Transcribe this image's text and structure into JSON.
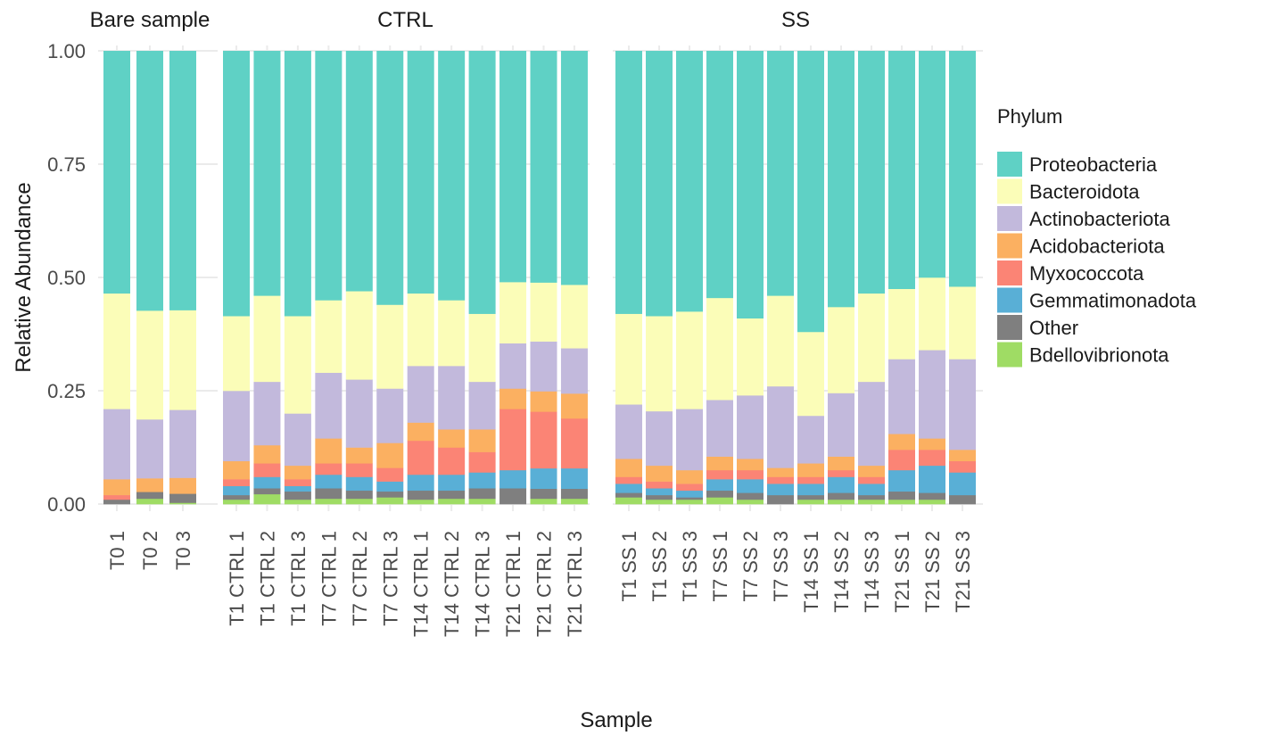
{
  "chart_data": {
    "type": "bar",
    "stacked": true,
    "xlabel": "Sample",
    "ylabel": "Relative Abundance",
    "ylim": [
      0,
      1
    ],
    "y_ticks": [
      "0.00",
      "0.25",
      "0.50",
      "0.75",
      "1.00"
    ],
    "grid": true,
    "legend": {
      "title": "Phylum",
      "position": "right",
      "entries": [
        "Proteobacteria",
        "Bacteroidota",
        "Actinobacteriota",
        "Acidobacteriota",
        "Myxococcota",
        "Gemmatimonadota",
        "Other",
        "Bdellovibrionota"
      ]
    },
    "colors": {
      "Proteobacteria": "#5fd1c5",
      "Bacteroidota": "#fbfdb8",
      "Actinobacteriota": "#c2b9dc",
      "Acidobacteriota": "#fbb061",
      "Myxococcota": "#fb8475",
      "Gemmatimonadota": "#59afd6",
      "Other": "#7f7f7f",
      "Bdellovibrionota": "#9fdc64"
    },
    "stack_order_bottom_to_top": [
      "Bdellovibrionota",
      "Other",
      "Gemmatimonadota",
      "Myxococcota",
      "Acidobacteriota",
      "Actinobacteriota",
      "Bacteroidota",
      "Proteobacteria"
    ],
    "facets": [
      {
        "title": "Bare sample",
        "samples": [
          {
            "label": "T0_1",
            "Bdellovibrionota": 0.0,
            "Other": 0.01,
            "Gemmatimonadota": 0.0,
            "Myxococcota": 0.01,
            "Acidobacteriota": 0.035,
            "Actinobacteriota": 0.155,
            "Bacteroidota": 0.255,
            "Proteobacteria": 0.535
          },
          {
            "label": "T0_2",
            "Bdellovibrionota": 0.012,
            "Other": 0.015,
            "Gemmatimonadota": 0.0,
            "Myxococcota": 0.0,
            "Acidobacteriota": 0.03,
            "Actinobacteriota": 0.13,
            "Bacteroidota": 0.24,
            "Proteobacteria": 0.573
          },
          {
            "label": "T0_3",
            "Bdellovibrionota": 0.003,
            "Other": 0.02,
            "Gemmatimonadota": 0.0,
            "Myxococcota": 0.0,
            "Acidobacteriota": 0.035,
            "Actinobacteriota": 0.15,
            "Bacteroidota": 0.22,
            "Proteobacteria": 0.572
          }
        ]
      },
      {
        "title": "CTRL",
        "samples": [
          {
            "label": "T1_CTRL_1",
            "Bdellovibrionota": 0.01,
            "Other": 0.01,
            "Gemmatimonadota": 0.02,
            "Myxococcota": 0.015,
            "Acidobacteriota": 0.04,
            "Actinobacteriota": 0.155,
            "Bacteroidota": 0.165,
            "Proteobacteria": 0.585
          },
          {
            "label": "T1_CTRL_2",
            "Bdellovibrionota": 0.022,
            "Other": 0.013,
            "Gemmatimonadota": 0.025,
            "Myxococcota": 0.03,
            "Acidobacteriota": 0.04,
            "Actinobacteriota": 0.14,
            "Bacteroidota": 0.19,
            "Proteobacteria": 0.54
          },
          {
            "label": "T1_CTRL_3",
            "Bdellovibrionota": 0.01,
            "Other": 0.018,
            "Gemmatimonadota": 0.012,
            "Myxococcota": 0.015,
            "Acidobacteriota": 0.03,
            "Actinobacteriota": 0.115,
            "Bacteroidota": 0.215,
            "Proteobacteria": 0.585
          },
          {
            "label": "T7_CTRL_1",
            "Bdellovibrionota": 0.012,
            "Other": 0.023,
            "Gemmatimonadota": 0.03,
            "Myxococcota": 0.025,
            "Acidobacteriota": 0.055,
            "Actinobacteriota": 0.145,
            "Bacteroidota": 0.16,
            "Proteobacteria": 0.55
          },
          {
            "label": "T7_CTRL_2",
            "Bdellovibrionota": 0.012,
            "Other": 0.018,
            "Gemmatimonadota": 0.03,
            "Myxococcota": 0.03,
            "Acidobacteriota": 0.035,
            "Actinobacteriota": 0.15,
            "Bacteroidota": 0.195,
            "Proteobacteria": 0.53
          },
          {
            "label": "T7_CTRL_3",
            "Bdellovibrionota": 0.015,
            "Other": 0.013,
            "Gemmatimonadota": 0.022,
            "Myxococcota": 0.03,
            "Acidobacteriota": 0.055,
            "Actinobacteriota": 0.12,
            "Bacteroidota": 0.185,
            "Proteobacteria": 0.56
          },
          {
            "label": "T14_CTRL_1",
            "Bdellovibrionota": 0.01,
            "Other": 0.02,
            "Gemmatimonadota": 0.035,
            "Myxococcota": 0.075,
            "Acidobacteriota": 0.04,
            "Actinobacteriota": 0.125,
            "Bacteroidota": 0.16,
            "Proteobacteria": 0.535
          },
          {
            "label": "T14_CTRL_2",
            "Bdellovibrionota": 0.012,
            "Other": 0.018,
            "Gemmatimonadota": 0.035,
            "Myxococcota": 0.06,
            "Acidobacteriota": 0.04,
            "Actinobacteriota": 0.14,
            "Bacteroidota": 0.145,
            "Proteobacteria": 0.55
          },
          {
            "label": "T14_CTRL_3",
            "Bdellovibrionota": 0.012,
            "Other": 0.023,
            "Gemmatimonadota": 0.035,
            "Myxococcota": 0.045,
            "Acidobacteriota": 0.05,
            "Actinobacteriota": 0.105,
            "Bacteroidota": 0.15,
            "Proteobacteria": 0.58
          },
          {
            "label": "T21_CTRL_1",
            "Bdellovibrionota": 0.0,
            "Other": 0.035,
            "Gemmatimonadota": 0.04,
            "Myxococcota": 0.135,
            "Acidobacteriota": 0.045,
            "Actinobacteriota": 0.1,
            "Bacteroidota": 0.135,
            "Proteobacteria": 0.51
          },
          {
            "label": "T21_CTRL_2",
            "Bdellovibrionota": 0.012,
            "Other": 0.022,
            "Gemmatimonadota": 0.045,
            "Myxococcota": 0.125,
            "Acidobacteriota": 0.045,
            "Actinobacteriota": 0.11,
            "Bacteroidota": 0.13,
            "Proteobacteria": 0.511
          },
          {
            "label": "T21_CTRL_3",
            "Bdellovibrionota": 0.012,
            "Other": 0.022,
            "Gemmatimonadota": 0.045,
            "Myxococcota": 0.11,
            "Acidobacteriota": 0.055,
            "Actinobacteriota": 0.1,
            "Bacteroidota": 0.14,
            "Proteobacteria": 0.516
          }
        ]
      },
      {
        "title": "SS",
        "samples": [
          {
            "label": "T1_SS_1",
            "Bdellovibrionota": 0.015,
            "Other": 0.01,
            "Gemmatimonadota": 0.02,
            "Myxococcota": 0.015,
            "Acidobacteriota": 0.04,
            "Actinobacteriota": 0.12,
            "Bacteroidota": 0.2,
            "Proteobacteria": 0.58
          },
          {
            "label": "T1_SS_2",
            "Bdellovibrionota": 0.01,
            "Other": 0.01,
            "Gemmatimonadota": 0.015,
            "Myxococcota": 0.015,
            "Acidobacteriota": 0.035,
            "Actinobacteriota": 0.12,
            "Bacteroidota": 0.21,
            "Proteobacteria": 0.585
          },
          {
            "label": "T1_SS_3",
            "Bdellovibrionota": 0.01,
            "Other": 0.005,
            "Gemmatimonadota": 0.015,
            "Myxococcota": 0.015,
            "Acidobacteriota": 0.03,
            "Actinobacteriota": 0.135,
            "Bacteroidota": 0.215,
            "Proteobacteria": 0.575
          },
          {
            "label": "T7_SS_1",
            "Bdellovibrionota": 0.015,
            "Other": 0.015,
            "Gemmatimonadota": 0.025,
            "Myxococcota": 0.02,
            "Acidobacteriota": 0.03,
            "Actinobacteriota": 0.125,
            "Bacteroidota": 0.225,
            "Proteobacteria": 0.545
          },
          {
            "label": "T7_SS_2",
            "Bdellovibrionota": 0.01,
            "Other": 0.015,
            "Gemmatimonadota": 0.03,
            "Myxococcota": 0.02,
            "Acidobacteriota": 0.025,
            "Actinobacteriota": 0.14,
            "Bacteroidota": 0.17,
            "Proteobacteria": 0.59
          },
          {
            "label": "T7_SS_3",
            "Bdellovibrionota": 0.0,
            "Other": 0.02,
            "Gemmatimonadota": 0.025,
            "Myxococcota": 0.015,
            "Acidobacteriota": 0.02,
            "Actinobacteriota": 0.18,
            "Bacteroidota": 0.2,
            "Proteobacteria": 0.54
          },
          {
            "label": "T14_SS_1",
            "Bdellovibrionota": 0.01,
            "Other": 0.01,
            "Gemmatimonadota": 0.025,
            "Myxococcota": 0.015,
            "Acidobacteriota": 0.03,
            "Actinobacteriota": 0.105,
            "Bacteroidota": 0.185,
            "Proteobacteria": 0.62
          },
          {
            "label": "T14_SS_2",
            "Bdellovibrionota": 0.01,
            "Other": 0.015,
            "Gemmatimonadota": 0.035,
            "Myxococcota": 0.015,
            "Acidobacteriota": 0.03,
            "Actinobacteriota": 0.14,
            "Bacteroidota": 0.19,
            "Proteobacteria": 0.565
          },
          {
            "label": "T14_SS_3",
            "Bdellovibrionota": 0.01,
            "Other": 0.01,
            "Gemmatimonadota": 0.025,
            "Myxococcota": 0.015,
            "Acidobacteriota": 0.025,
            "Actinobacteriota": 0.185,
            "Bacteroidota": 0.195,
            "Proteobacteria": 0.535
          },
          {
            "label": "T21_SS_1",
            "Bdellovibrionota": 0.01,
            "Other": 0.018,
            "Gemmatimonadota": 0.047,
            "Myxococcota": 0.045,
            "Acidobacteriota": 0.035,
            "Actinobacteriota": 0.165,
            "Bacteroidota": 0.155,
            "Proteobacteria": 0.525
          },
          {
            "label": "T21_SS_2",
            "Bdellovibrionota": 0.01,
            "Other": 0.015,
            "Gemmatimonadota": 0.06,
            "Myxococcota": 0.035,
            "Acidobacteriota": 0.025,
            "Actinobacteriota": 0.195,
            "Bacteroidota": 0.16,
            "Proteobacteria": 0.5
          },
          {
            "label": "T21_SS_3",
            "Bdellovibrionota": 0.0,
            "Other": 0.02,
            "Gemmatimonadota": 0.05,
            "Myxococcota": 0.025,
            "Acidobacteriota": 0.025,
            "Actinobacteriota": 0.2,
            "Bacteroidota": 0.16,
            "Proteobacteria": 0.52
          }
        ]
      }
    ]
  }
}
